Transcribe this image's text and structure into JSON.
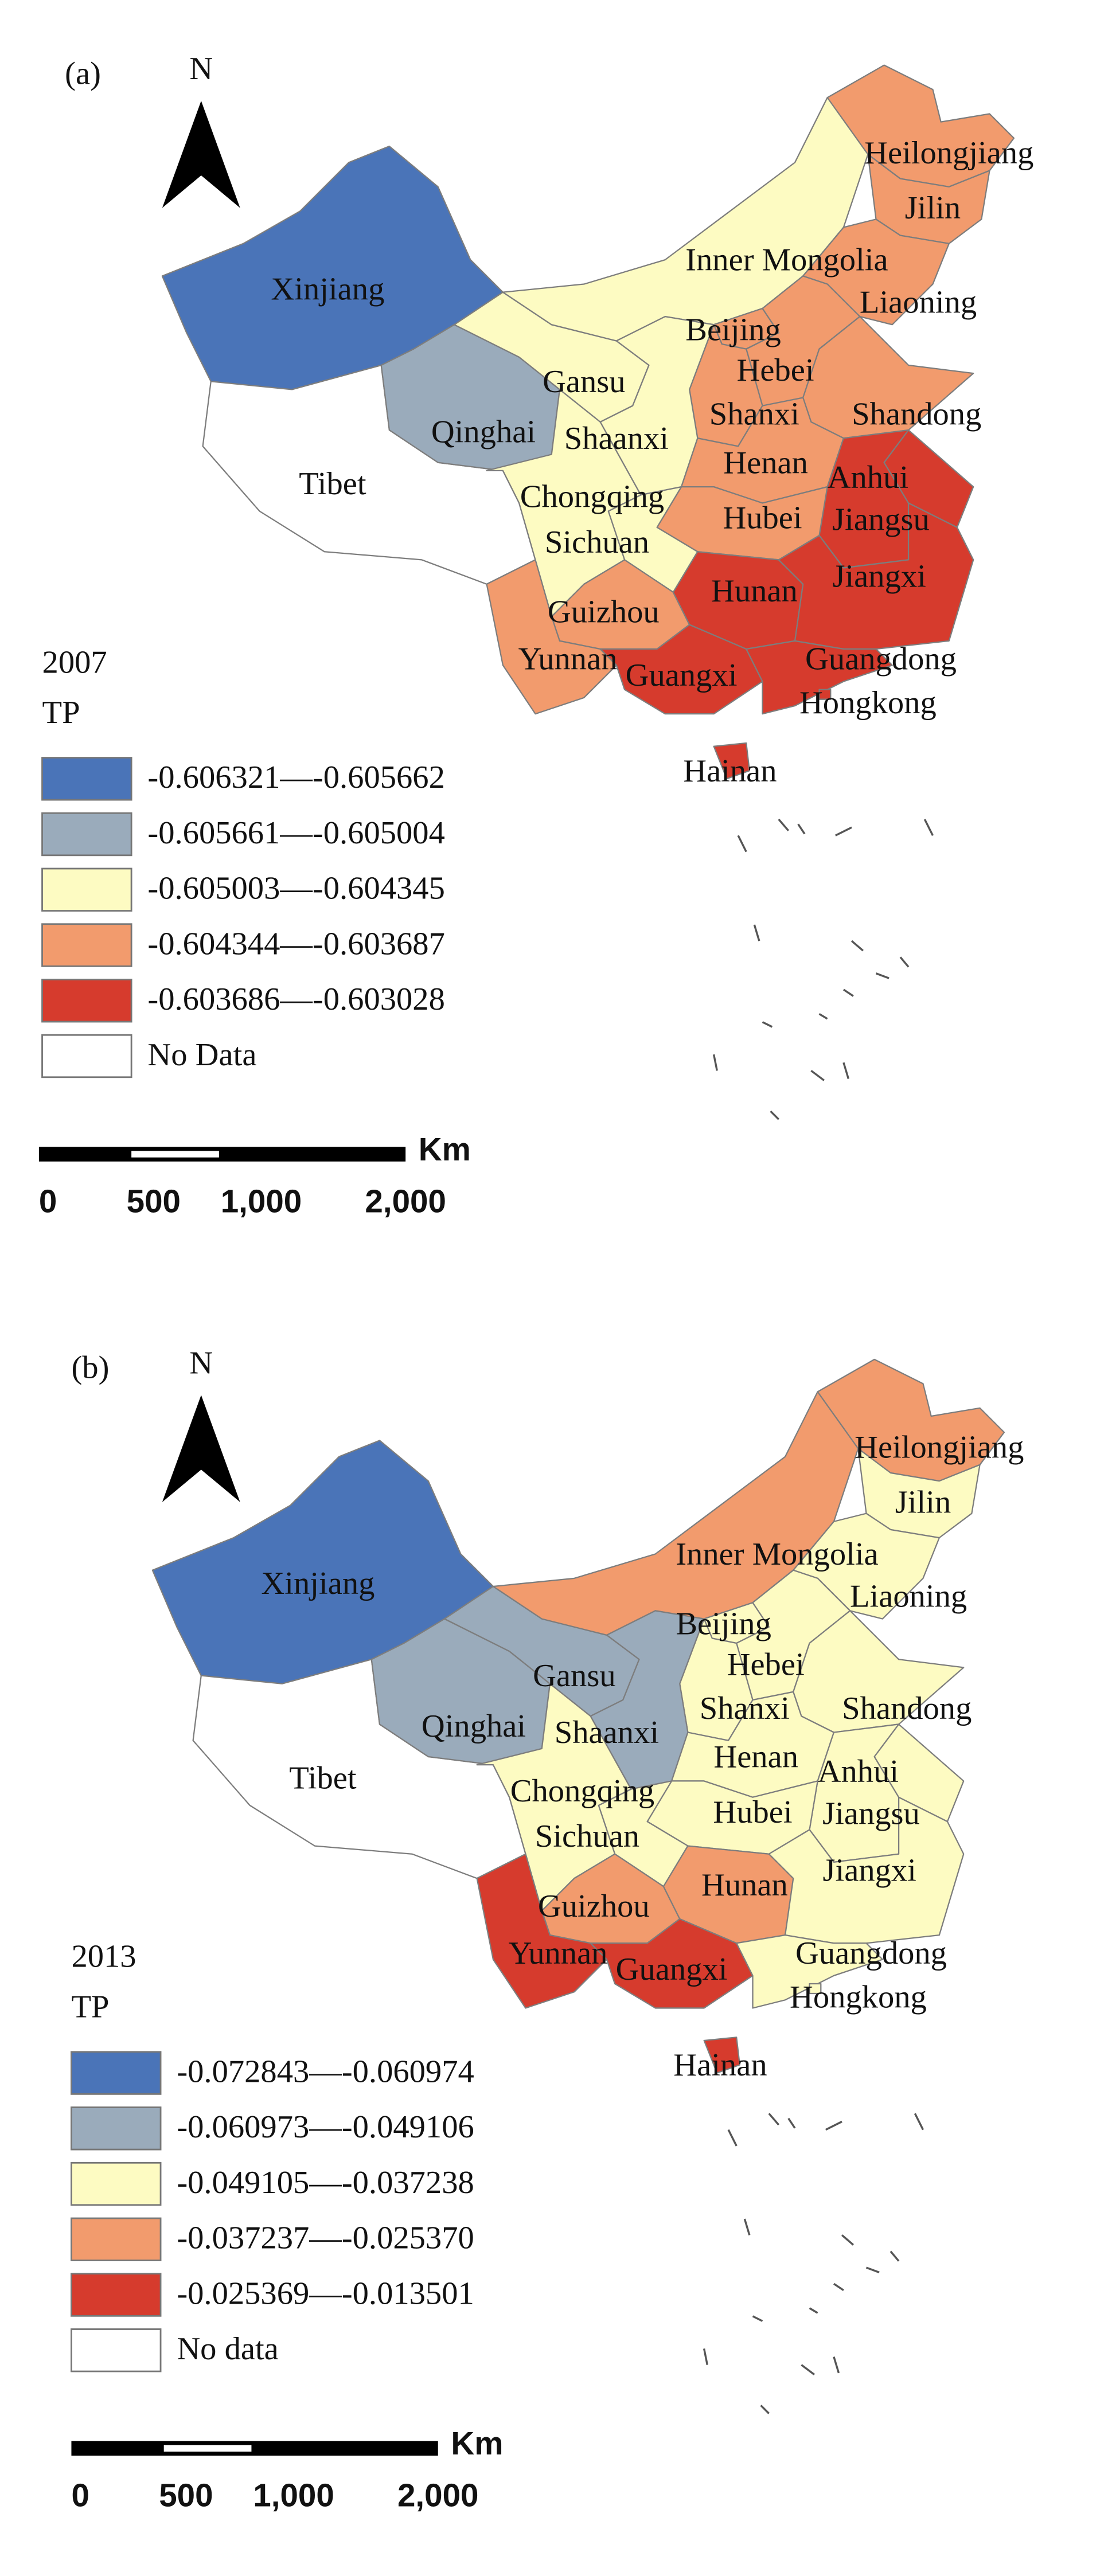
{
  "panels": [
    {
      "label": "(a)",
      "north": "N",
      "year": "2007",
      "variable": "TP",
      "legend": [
        {
          "label": "-0.606321—-0.605662",
          "color": "#4a74b8"
        },
        {
          "label": "-0.605661—-0.605004",
          "color": "#9aabbb"
        },
        {
          "label": "-0.605003—-0.604345",
          "color": "#fdfbc2"
        },
        {
          "label": "-0.604344—-0.603687",
          "color": "#f29b6d"
        },
        {
          "label": "-0.603686—-0.603028",
          "color": "#d63b2d"
        },
        {
          "label": "No Data",
          "color": "#ffffff"
        }
      ],
      "provinces": [
        {
          "name": "Xinjiang",
          "legend_class": 0
        },
        {
          "name": "Tibet",
          "legend_class": 5
        },
        {
          "name": "Qinghai",
          "legend_class": 1
        },
        {
          "name": "Gansu",
          "legend_class": 2
        },
        {
          "name": "Inner Mongolia",
          "legend_class": 2
        },
        {
          "name": "Heilongjiang",
          "legend_class": 3
        },
        {
          "name": "Jilin",
          "legend_class": 3
        },
        {
          "name": "Liaoning",
          "legend_class": 3
        },
        {
          "name": "Beijing",
          "legend_class": 3
        },
        {
          "name": "Hebei",
          "legend_class": 3
        },
        {
          "name": "Shanxi",
          "legend_class": 3
        },
        {
          "name": "Shandong",
          "legend_class": 3
        },
        {
          "name": "Shaanxi",
          "legend_class": 2
        },
        {
          "name": "Henan",
          "legend_class": 3
        },
        {
          "name": "Anhui",
          "legend_class": 4
        },
        {
          "name": "Jiangsu",
          "legend_class": 4
        },
        {
          "name": "Hubei",
          "legend_class": 3
        },
        {
          "name": "Chongqing",
          "legend_class": 2
        },
        {
          "name": "Sichuan",
          "legend_class": 2
        },
        {
          "name": "Guizhou",
          "legend_class": 3
        },
        {
          "name": "Hunan",
          "legend_class": 4
        },
        {
          "name": "Jiangxi",
          "legend_class": 4
        },
        {
          "name": "Yunnan",
          "legend_class": 3
        },
        {
          "name": "Guangxi",
          "legend_class": 4
        },
        {
          "name": "Guangdong",
          "legend_class": 4
        },
        {
          "name": "Hongkong",
          "legend_class": 4
        },
        {
          "name": "Hainan",
          "legend_class": 4
        }
      ],
      "scale": {
        "unit": "Km",
        "ticks": [
          "0",
          "500",
          "1,000",
          "2,000"
        ]
      }
    },
    {
      "label": "(b)",
      "north": "N",
      "year": "2013",
      "variable": "TP",
      "legend": [
        {
          "label": "-0.072843—-0.060974",
          "color": "#4a74b8"
        },
        {
          "label": "-0.060973—-0.049106",
          "color": "#9aabbb"
        },
        {
          "label": "-0.049105—-0.037238",
          "color": "#fdfbc2"
        },
        {
          "label": "-0.037237—-0.025370",
          "color": "#f29b6d"
        },
        {
          "label": "-0.025369—-0.013501",
          "color": "#d63b2d"
        },
        {
          "label": "No data",
          "color": "#ffffff"
        }
      ],
      "provinces": [
        {
          "name": "Xinjiang",
          "legend_class": 0
        },
        {
          "name": "Tibet",
          "legend_class": 5
        },
        {
          "name": "Qinghai",
          "legend_class": 1
        },
        {
          "name": "Gansu",
          "legend_class": 1
        },
        {
          "name": "Inner Mongolia",
          "legend_class": 3
        },
        {
          "name": "Heilongjiang",
          "legend_class": 3
        },
        {
          "name": "Jilin",
          "legend_class": 2
        },
        {
          "name": "Liaoning",
          "legend_class": 2
        },
        {
          "name": "Beijing",
          "legend_class": 2
        },
        {
          "name": "Hebei",
          "legend_class": 2
        },
        {
          "name": "Shanxi",
          "legend_class": 2
        },
        {
          "name": "Shandong",
          "legend_class": 2
        },
        {
          "name": "Shaanxi",
          "legend_class": 1
        },
        {
          "name": "Henan",
          "legend_class": 2
        },
        {
          "name": "Anhui",
          "legend_class": 2
        },
        {
          "name": "Jiangsu",
          "legend_class": 2
        },
        {
          "name": "Hubei",
          "legend_class": 2
        },
        {
          "name": "Chongqing",
          "legend_class": 2
        },
        {
          "name": "Sichuan",
          "legend_class": 2
        },
        {
          "name": "Guizhou",
          "legend_class": 3
        },
        {
          "name": "Hunan",
          "legend_class": 3
        },
        {
          "name": "Jiangxi",
          "legend_class": 2
        },
        {
          "name": "Yunnan",
          "legend_class": 4
        },
        {
          "name": "Guangxi",
          "legend_class": 4
        },
        {
          "name": "Guangdong",
          "legend_class": 2
        },
        {
          "name": "Hongkong",
          "legend_class": 2
        },
        {
          "name": "Hainan",
          "legend_class": 4
        }
      ],
      "scale": {
        "unit": "Km",
        "ticks": [
          "0",
          "500",
          "1,000",
          "2,000"
        ]
      }
    }
  ]
}
